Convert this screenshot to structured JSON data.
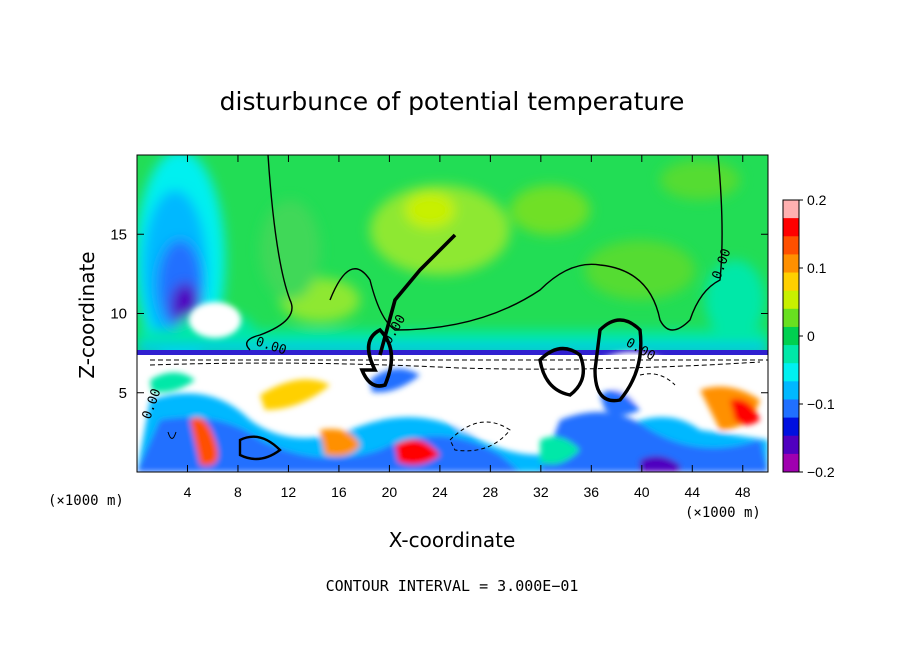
{
  "chart_data": {
    "type": "heatmap",
    "title": "disturbunce of potential temperature",
    "xlabel": "X-coordinate",
    "ylabel": "Z-coordinate",
    "x_units": "(×1000 m)",
    "y_units": "(×1000 m)",
    "xlim": [
      0,
      50
    ],
    "ylim": [
      0,
      20
    ],
    "x_ticks": [
      4,
      8,
      12,
      16,
      20,
      24,
      28,
      32,
      36,
      40,
      44,
      48
    ],
    "y_ticks": [
      5,
      10,
      15
    ],
    "colorbar": {
      "range": [
        -0.2,
        0.2
      ],
      "tick_values": [
        0.2,
        0.1,
        0,
        -0.1,
        -0.2
      ],
      "tick_labels": [
        "0.2",
        "0.1",
        "0",
        "−0.1",
        "−0.2"
      ],
      "colors": [
        "#ffb0b0",
        "#ff0000",
        "#ff5000",
        "#ff9000",
        "#ffd000",
        "#c8f000",
        "#68e020",
        "#00d050",
        "#00e8a8",
        "#00f0f0",
        "#00b8ff",
        "#2070ff",
        "#0010e0",
        "#5000c0",
        "#a000b0"
      ]
    },
    "contour_labels": [
      "0.00",
      "0.00",
      "0.00",
      "0.00",
      "0.00"
    ],
    "contour_interval": "3.000E−01",
    "footer": "CONTOUR INTERVAL = 3.000E−01"
  }
}
